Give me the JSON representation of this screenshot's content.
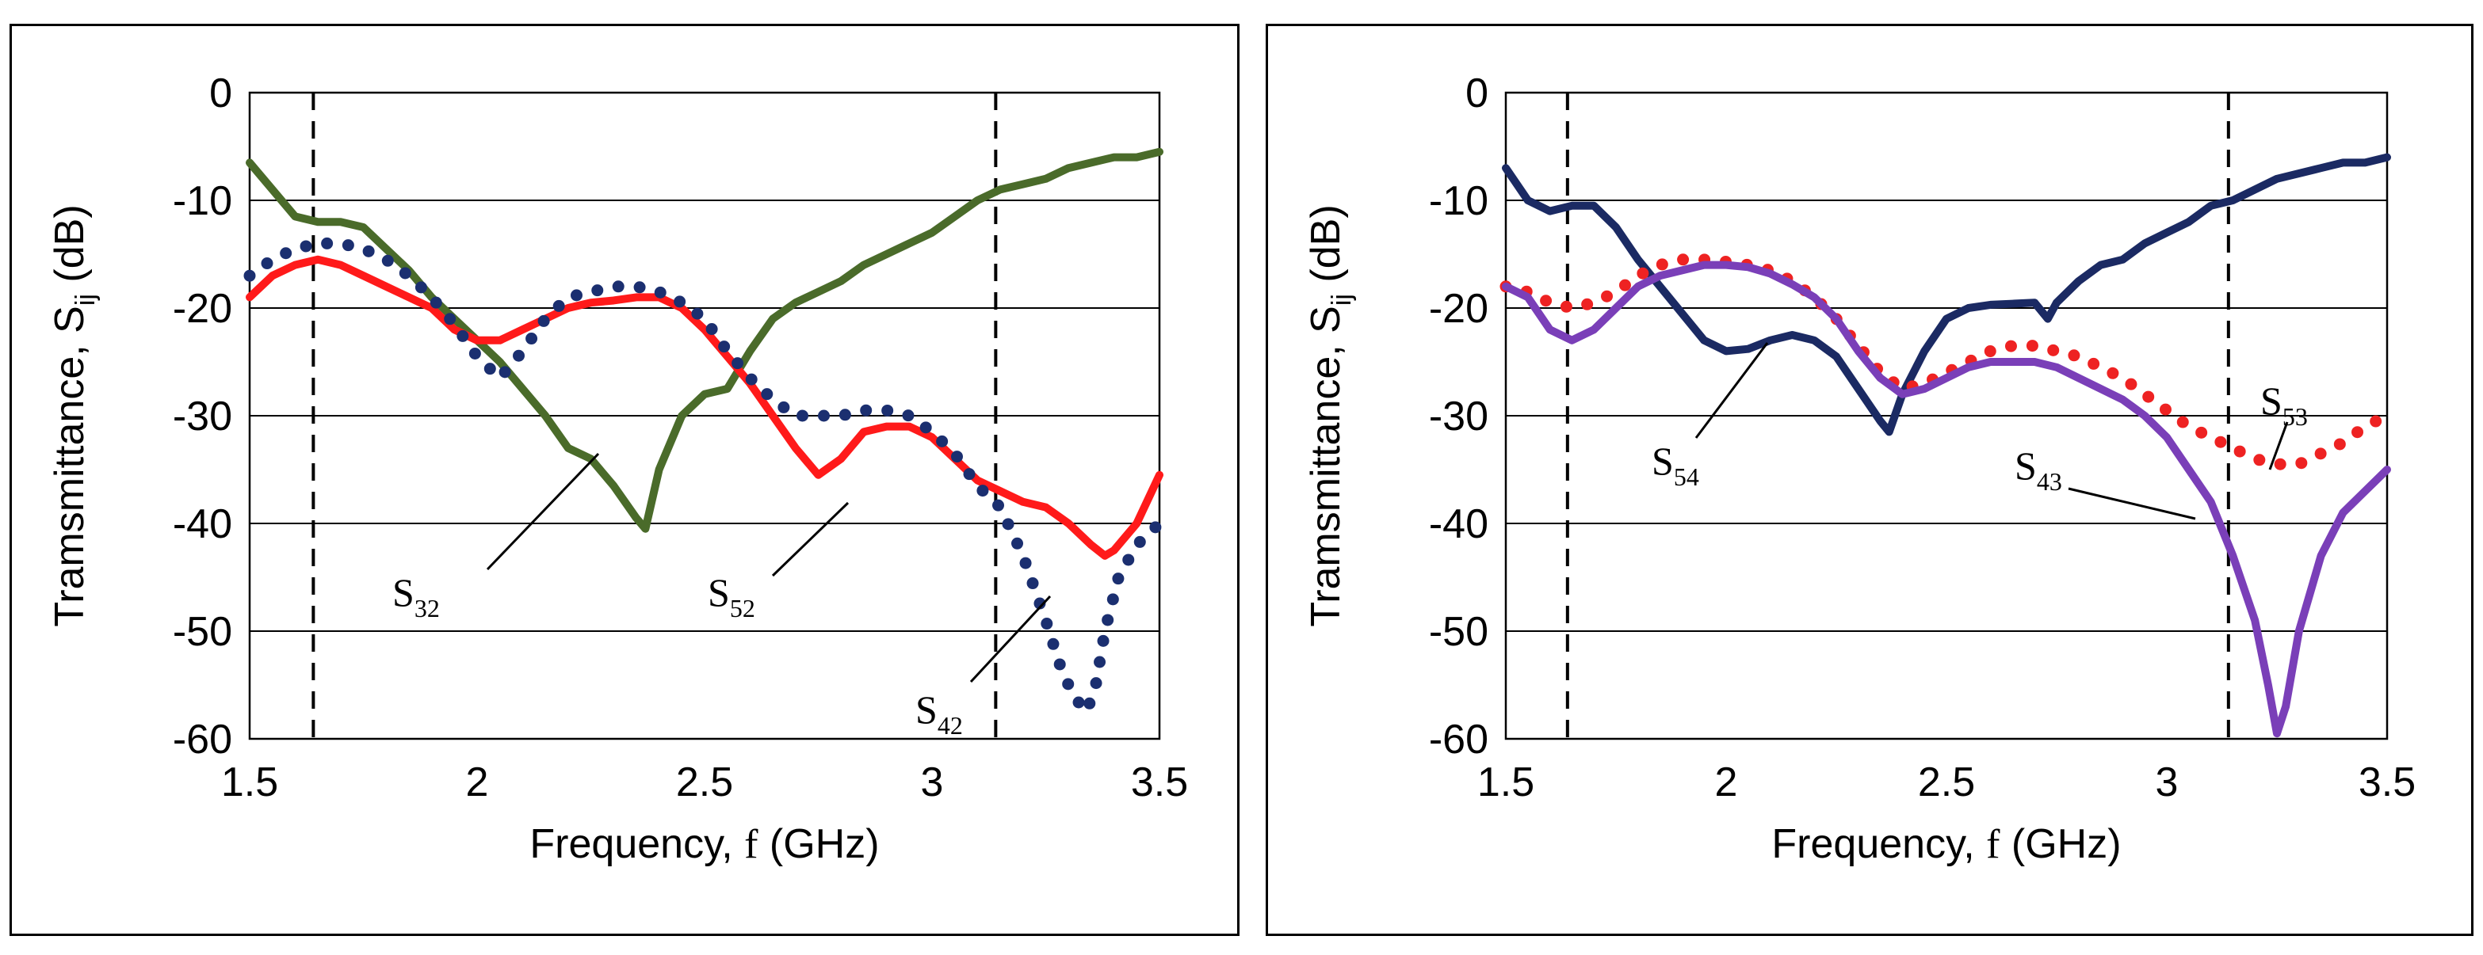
{
  "chart_data": [
    {
      "type": "line",
      "xlabel_main": "Frequency,",
      "xlabel_var": "f",
      "xlabel_unit": "(GHz)",
      "ylabel": "Tramsmittance, S",
      "ylabel_sub": "ij",
      "ylabel_unit": " (dB)",
      "xlim": [
        1.5,
        3.5
      ],
      "ylim": [
        -60,
        0
      ],
      "x_ticks": [
        "1.5",
        "2",
        "2.5",
        "3",
        "3.5"
      ],
      "x_tick_values": [
        1.5,
        2,
        2.5,
        3,
        3.5
      ],
      "y_ticks": [
        "0",
        "-10",
        "-20",
        "-30",
        "-40",
        "-50",
        "-60"
      ],
      "y_tick_values": [
        0,
        -10,
        -20,
        -30,
        -40,
        -50,
        -60
      ],
      "grid": true,
      "vlines": [
        1.64,
        3.14
      ],
      "series": [
        {
          "name": "S32",
          "style": "solid",
          "color": "#4a6b2a",
          "x": [
            1.5,
            1.55,
            1.6,
            1.65,
            1.7,
            1.75,
            1.8,
            1.85,
            1.9,
            1.95,
            2.0,
            2.05,
            2.1,
            2.15,
            2.2,
            2.25,
            2.3,
            2.35,
            2.37,
            2.4,
            2.45,
            2.5,
            2.55,
            2.6,
            2.65,
            2.7,
            2.75,
            2.8,
            2.85,
            2.9,
            2.95,
            3.0,
            3.05,
            3.1,
            3.15,
            3.2,
            3.25,
            3.3,
            3.35,
            3.4,
            3.45,
            3.5
          ],
          "y": [
            -6.5,
            -9,
            -11.5,
            -12,
            -12,
            -12.5,
            -14.5,
            -16.5,
            -19,
            -21,
            -23,
            -25,
            -27.5,
            -30,
            -33,
            -34,
            -36.5,
            -39.5,
            -40.5,
            -35,
            -30,
            -28,
            -27.5,
            -24,
            -21,
            -19.5,
            -18.5,
            -17.5,
            -16,
            -15,
            -14,
            -13,
            -11.5,
            -10,
            -9,
            -8.5,
            -8,
            -7,
            -6.5,
            -6,
            -6,
            -5.5
          ]
        },
        {
          "name": "S52",
          "style": "solid",
          "color": "#ff1a1a",
          "x": [
            1.5,
            1.55,
            1.6,
            1.65,
            1.7,
            1.75,
            1.8,
            1.85,
            1.9,
            1.95,
            2.0,
            2.05,
            2.1,
            2.15,
            2.2,
            2.25,
            2.3,
            2.35,
            2.4,
            2.45,
            2.5,
            2.55,
            2.6,
            2.65,
            2.7,
            2.75,
            2.8,
            2.85,
            2.9,
            2.95,
            3.0,
            3.05,
            3.1,
            3.15,
            3.2,
            3.25,
            3.3,
            3.35,
            3.38,
            3.4,
            3.45,
            3.5
          ],
          "y": [
            -19,
            -17,
            -16,
            -15.5,
            -16,
            -17,
            -18,
            -19,
            -20,
            -22,
            -23,
            -23,
            -22,
            -21,
            -20,
            -19.5,
            -19.3,
            -19,
            -19,
            -20,
            -22,
            -24.5,
            -27,
            -30,
            -33,
            -35.5,
            -34,
            -31.5,
            -31,
            -31,
            -32,
            -34,
            -36,
            -37,
            -38,
            -38.5,
            -40,
            -42,
            -43,
            -42.5,
            -40,
            -35.5
          ]
        },
        {
          "name": "S42",
          "style": "dotted",
          "color": "#1b2f70",
          "x": [
            1.5,
            1.55,
            1.6,
            1.65,
            1.7,
            1.75,
            1.8,
            1.85,
            1.9,
            1.95,
            2.0,
            2.05,
            2.1,
            2.15,
            2.2,
            2.25,
            2.3,
            2.35,
            2.4,
            2.45,
            2.5,
            2.55,
            2.6,
            2.65,
            2.7,
            2.75,
            2.8,
            2.85,
            2.9,
            2.95,
            3.0,
            3.05,
            3.1,
            3.15,
            3.2,
            3.25,
            3.28,
            3.31,
            3.34,
            3.36,
            3.38,
            3.41,
            3.45,
            3.5
          ],
          "y": [
            -17,
            -15.5,
            -14.5,
            -14,
            -14,
            -14.5,
            -15.5,
            -17,
            -19,
            -21.5,
            -24.5,
            -26.5,
            -24,
            -21,
            -19,
            -18.5,
            -18,
            -18,
            -18.5,
            -19.5,
            -21,
            -24,
            -26.5,
            -28.5,
            -30,
            -30,
            -30,
            -29.5,
            -29.5,
            -30,
            -31.5,
            -33.5,
            -36.5,
            -38.5,
            -43,
            -49,
            -53,
            -56,
            -57.5,
            -55,
            -50,
            -45,
            -42,
            -40
          ]
        }
      ],
      "annotations": [
        {
          "base": "S",
          "sub": "32"
        },
        {
          "base": "S",
          "sub": "52"
        },
        {
          "base": "S",
          "sub": "42"
        }
      ]
    },
    {
      "type": "line",
      "xlabel_main": "Frequency,",
      "xlabel_var": "f",
      "xlabel_unit": "(GHz)",
      "ylabel": "Tramsmittance, S",
      "ylabel_sub": "ij",
      "ylabel_unit": " (dB)",
      "xlim": [
        1.5,
        3.5
      ],
      "ylim": [
        -60,
        0
      ],
      "x_ticks": [
        "1.5",
        "2",
        "2.5",
        "3",
        "3.5"
      ],
      "x_tick_values": [
        1.5,
        2,
        2.5,
        3,
        3.5
      ],
      "y_ticks": [
        "0",
        "-10",
        "-20",
        "-30",
        "-40",
        "-50",
        "-60"
      ],
      "y_tick_values": [
        0,
        -10,
        -20,
        -30,
        -40,
        -50,
        -60
      ],
      "grid": true,
      "vlines": [
        1.64,
        3.14
      ],
      "series": [
        {
          "name": "S54",
          "style": "solid",
          "color": "#1b2a63",
          "x": [
            1.5,
            1.55,
            1.6,
            1.65,
            1.7,
            1.75,
            1.8,
            1.85,
            1.9,
            1.95,
            2.0,
            2.05,
            2.1,
            2.15,
            2.2,
            2.25,
            2.3,
            2.35,
            2.37,
            2.4,
            2.45,
            2.5,
            2.55,
            2.6,
            2.65,
            2.7,
            2.73,
            2.75,
            2.8,
            2.85,
            2.9,
            2.95,
            3.0,
            3.05,
            3.1,
            3.15,
            3.2,
            3.25,
            3.3,
            3.35,
            3.4,
            3.45,
            3.5
          ],
          "y": [
            -7,
            -10,
            -11,
            -10.5,
            -10.5,
            -12.5,
            -15.5,
            -18,
            -20.5,
            -23,
            -24,
            -23.8,
            -23,
            -22.5,
            -23,
            -24.5,
            -27.5,
            -30.5,
            -31.5,
            -28,
            -24,
            -21,
            -20,
            -19.7,
            -19.6,
            -19.5,
            -21,
            -19.5,
            -17.5,
            -16,
            -15.5,
            -14,
            -13,
            -12,
            -10.5,
            -10,
            -9,
            -8,
            -7.5,
            -7,
            -6.5,
            -6.5,
            -6
          ]
        },
        {
          "name": "S53",
          "style": "dotted",
          "color": "#ee2222",
          "x": [
            1.5,
            1.55,
            1.6,
            1.65,
            1.7,
            1.75,
            1.8,
            1.85,
            1.9,
            1.95,
            2.0,
            2.05,
            2.1,
            2.15,
            2.2,
            2.25,
            2.3,
            2.35,
            2.4,
            2.45,
            2.5,
            2.55,
            2.6,
            2.65,
            2.7,
            2.75,
            2.8,
            2.85,
            2.9,
            2.95,
            3.0,
            3.05,
            3.1,
            3.15,
            3.2,
            3.25,
            3.3,
            3.35,
            3.4,
            3.45,
            3.5
          ],
          "y": [
            -18,
            -18.5,
            -19.5,
            -20,
            -19.5,
            -18.5,
            -17,
            -16,
            -15.5,
            -15.5,
            -15.7,
            -16,
            -16.5,
            -17.5,
            -19,
            -21,
            -23.5,
            -26,
            -27.5,
            -27,
            -26,
            -25,
            -24,
            -23.5,
            -23.5,
            -24,
            -24.5,
            -25.5,
            -26.5,
            -28,
            -29.5,
            -31,
            -32,
            -33,
            -34,
            -34.5,
            -34.5,
            -33.5,
            -32.5,
            -31,
            -30
          ]
        },
        {
          "name": "S43",
          "style": "solid",
          "color": "#7a3fb8",
          "x": [
            1.5,
            1.55,
            1.6,
            1.65,
            1.7,
            1.75,
            1.8,
            1.85,
            1.9,
            1.95,
            2.0,
            2.05,
            2.1,
            2.15,
            2.2,
            2.25,
            2.3,
            2.35,
            2.4,
            2.45,
            2.5,
            2.55,
            2.6,
            2.65,
            2.7,
            2.75,
            2.8,
            2.85,
            2.9,
            2.95,
            3.0,
            3.05,
            3.1,
            3.15,
            3.2,
            3.23,
            3.25,
            3.27,
            3.3,
            3.35,
            3.4,
            3.45,
            3.5
          ],
          "y": [
            -18,
            -19,
            -22,
            -23,
            -22,
            -20,
            -18,
            -17,
            -16.5,
            -16,
            -16,
            -16.2,
            -16.8,
            -17.8,
            -19,
            -21,
            -24,
            -26.5,
            -28,
            -27.5,
            -26.5,
            -25.5,
            -25,
            -25,
            -25,
            -25.5,
            -26.5,
            -27.5,
            -28.5,
            -30,
            -32,
            -35,
            -38,
            -43,
            -49,
            -55,
            -59.5,
            -57,
            -50,
            -43,
            -39,
            -37,
            -35
          ]
        }
      ],
      "annotations": [
        {
          "base": "S",
          "sub": "54"
        },
        {
          "base": "S",
          "sub": "53"
        },
        {
          "base": "S",
          "sub": "43"
        }
      ]
    }
  ]
}
